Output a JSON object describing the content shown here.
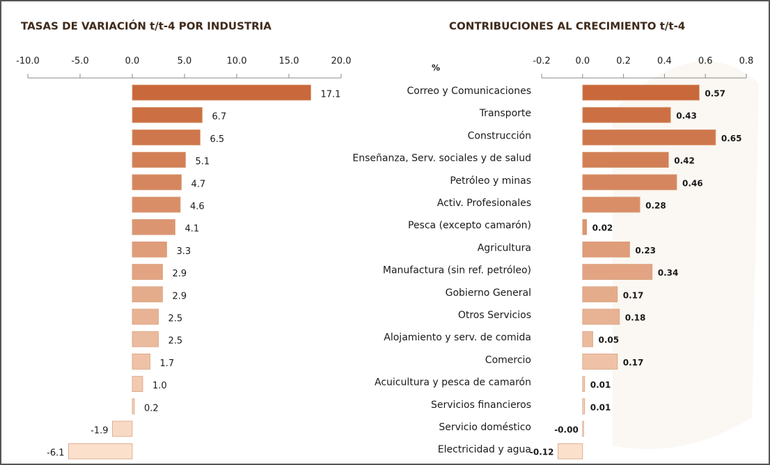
{
  "chart_data": [
    {
      "type": "hbar",
      "title": "TASAS DE VARIACIÓN t/t-4 POR INDUSTRIA",
      "values": [
        17.1,
        6.7,
        6.5,
        5.1,
        4.7,
        4.6,
        4.1,
        3.3,
        2.9,
        2.9,
        2.5,
        2.5,
        1.7,
        1.0,
        0.2,
        -1.9,
        -6.1
      ],
      "value_labels": [
        "17.1",
        "6.7",
        "6.5",
        "5.1",
        "4.7",
        "4.6",
        "4.1",
        "3.3",
        "2.9",
        "2.9",
        "2.5",
        "2.5",
        "1.7",
        "1.0",
        "0.2",
        "-1.9",
        "-6.1"
      ],
      "xlim": [
        -10,
        20
      ],
      "xticks": [
        {
          "value": -10,
          "label": "-10.0"
        },
        {
          "value": -5,
          "label": "-5.0"
        },
        {
          "value": 0,
          "label": "0.0"
        },
        {
          "value": 5,
          "label": "5.0"
        },
        {
          "value": 10,
          "label": "10.0"
        },
        {
          "value": 15,
          "label": "15.0"
        },
        {
          "value": 20,
          "label": "20.0"
        }
      ],
      "color_range": [
        "#c9683a",
        "#fbe0cc"
      ],
      "negative_color": "#e00000"
    },
    {
      "type": "hbar",
      "title": "CONTRIBUCIONES AL CRECIMIENTO t/t-4",
      "unit": "%",
      "categories": [
        "Correo y Comunicaciones",
        "Transporte",
        "Construcción",
        "Enseñanza, Serv. sociales y de salud",
        "Petróleo y minas",
        "Activ. Profesionales",
        "Pesca (excepto camarón)",
        "Agricultura",
        "Manufactura (sin ref. petróleo)",
        "Gobierno General",
        "Otros Servicios",
        "Alojamiento y serv. de comida",
        "Comercio",
        "Acuicultura y pesca de camarón",
        "Servicios financieros",
        "Servicio doméstico",
        "Electricidad y agua"
      ],
      "values": [
        0.57,
        0.43,
        0.65,
        0.42,
        0.46,
        0.28,
        0.02,
        0.23,
        0.34,
        0.17,
        0.18,
        0.05,
        0.17,
        0.01,
        0.01,
        0,
        -0.12
      ],
      "value_labels": [
        "0.57",
        "0.43",
        "0.65",
        "0.42",
        "0.46",
        "0.28",
        "0.02",
        "0.23",
        "0.34",
        "0.17",
        "0.18",
        "0.05",
        "0.17",
        "0.01",
        "0.01",
        "-0.00",
        "-0.12"
      ],
      "xlim": [
        -0.2,
        0.8
      ],
      "xticks": [
        -0.2,
        {
          "value": 0,
          "label": "0.0"
        },
        0.2,
        0.4,
        0.6,
        0.8
      ],
      "color_range": [
        "#c9683a",
        "#fbe0cc"
      ],
      "negative_color": "#e00000"
    }
  ]
}
